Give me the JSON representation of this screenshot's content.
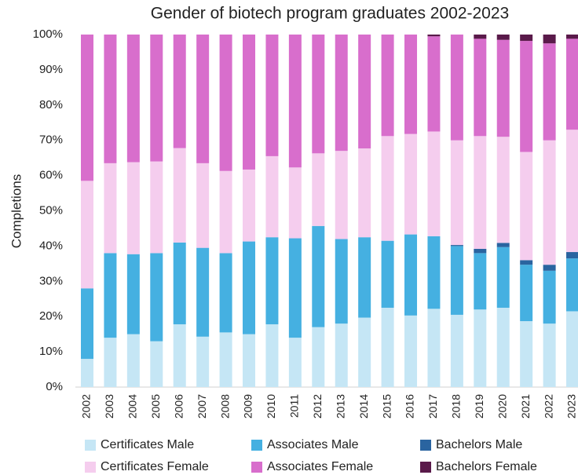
{
  "chart_data": {
    "type": "stacked_bar",
    "title": "Gender of biotech program graduates 2002-2023",
    "y_label": "Completions",
    "categories": [
      "2002",
      "2003",
      "2004",
      "2005",
      "2006",
      "2007",
      "2008",
      "2009",
      "2010",
      "2011",
      "2012",
      "2013",
      "2014",
      "2015",
      "2016",
      "2017",
      "2018",
      "2019",
      "2020",
      "2021",
      "2022",
      "2023"
    ],
    "series": [
      {
        "name": "Certificates Male",
        "color": "#c5e6f5",
        "values": [
          8,
          14,
          15,
          13,
          17.8,
          14.3,
          15.5,
          15,
          17.8,
          14,
          17,
          18,
          19.7,
          22.5,
          20.3,
          22.2,
          20.5,
          22,
          22.5,
          18.7,
          18,
          21.5
        ]
      },
      {
        "name": "Associates Male",
        "color": "#45b0e1",
        "values": [
          20,
          24,
          22.7,
          25,
          23.2,
          25.2,
          22.5,
          26.3,
          24.7,
          28.2,
          28.7,
          24,
          22.8,
          19,
          23,
          20.6,
          19.5,
          16,
          17.2,
          16,
          15,
          15
        ]
      },
      {
        "name": "Bachelors Male",
        "color": "#2a64a0",
        "values": [
          0,
          0,
          0,
          0,
          0,
          0,
          0,
          0,
          0,
          0,
          0,
          0,
          0,
          0,
          0,
          0,
          0.3,
          1.2,
          1.2,
          1.3,
          1.7,
          1.8
        ]
      },
      {
        "name": "Certificates Female",
        "color": "#f5cdee",
        "values": [
          30.5,
          25.5,
          26.1,
          26,
          26.8,
          24,
          23.3,
          20.4,
          23,
          20.1,
          20.6,
          25,
          25.2,
          29.7,
          28.5,
          29.7,
          29.7,
          32,
          30.1,
          30.7,
          35.3,
          34.7
        ]
      },
      {
        "name": "Associates Female",
        "color": "#d86ecc",
        "values": [
          41.5,
          36.5,
          36.2,
          36,
          32.2,
          36.5,
          38.7,
          38.3,
          34.5,
          37.7,
          33.7,
          33,
          32.3,
          28.8,
          28.2,
          27,
          30,
          27.6,
          27.5,
          31.5,
          27.5,
          25.8
        ]
      },
      {
        "name": "Bachelors Female",
        "color": "#5a1a4a",
        "values": [
          0,
          0,
          0,
          0,
          0,
          0,
          0,
          0,
          0,
          0,
          0,
          0,
          0,
          0,
          0,
          0.5,
          0,
          1.2,
          1.5,
          1.8,
          2.5,
          1.2
        ]
      }
    ],
    "ylim": [
      0,
      100
    ],
    "yticks": [
      {
        "value": 0,
        "label": "0%"
      },
      {
        "value": 10,
        "label": "10%"
      },
      {
        "value": 20,
        "label": "20%"
      },
      {
        "value": 30,
        "label": "30%"
      },
      {
        "value": 40,
        "label": "40%"
      },
      {
        "value": 50,
        "label": "50%"
      },
      {
        "value": 60,
        "label": "60%"
      },
      {
        "value": 70,
        "label": "70%"
      },
      {
        "value": 80,
        "label": "80%"
      },
      {
        "value": 90,
        "label": "90%"
      },
      {
        "value": 100,
        "label": "100%"
      }
    ],
    "grid": false,
    "legend": "bottom"
  }
}
